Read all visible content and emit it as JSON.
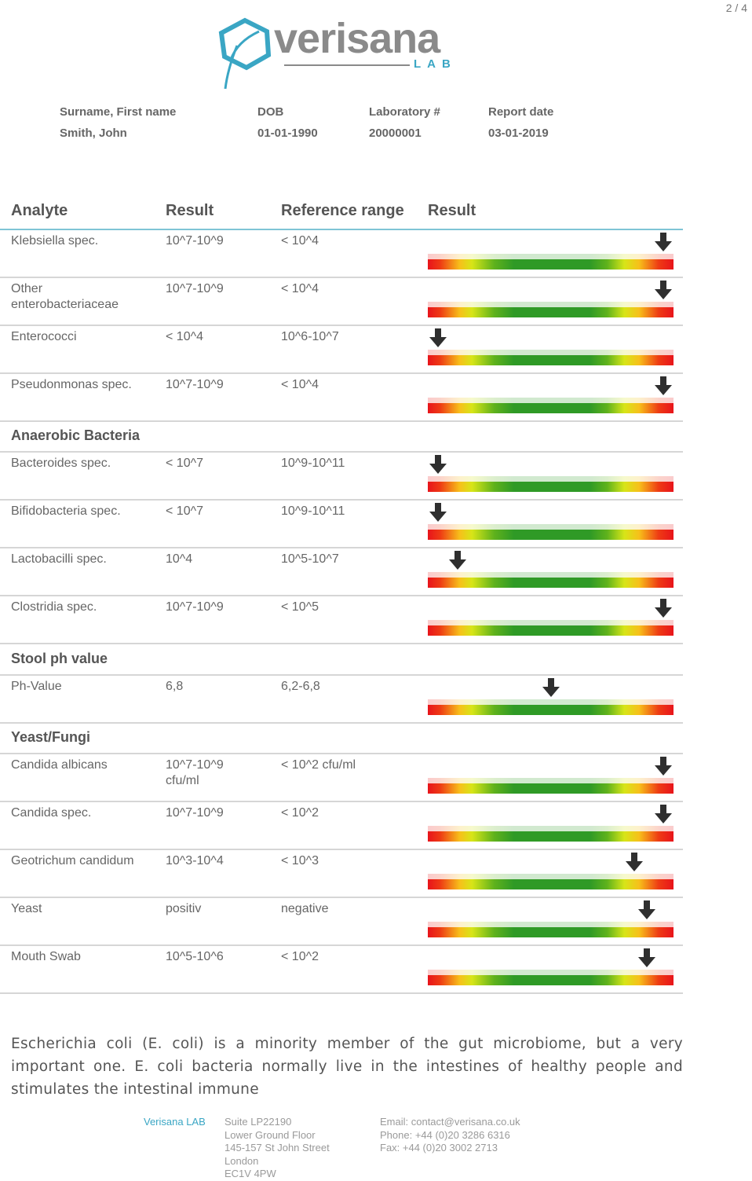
{
  "page_number": "2 / 4",
  "logo": {
    "word": "verisana",
    "sub": "LAB"
  },
  "patient": {
    "name_label": "Surname, First name",
    "name": "Smith, John",
    "dob_label": "DOB",
    "dob": "01-01-1990",
    "lab_label": "Laboratory #",
    "lab": "20000001",
    "report_label": "Report date",
    "report": "03-01-2019"
  },
  "table": {
    "headers": [
      "Analyte",
      "Result",
      "Reference range",
      "Result"
    ],
    "rows": [
      {
        "analyte": "Klebsiella spec.",
        "result": "10^7-10^9",
        "range": "< 10^4",
        "marker": 0.96
      },
      {
        "analyte": "Other enterobacteriaceae",
        "result": "10^7-10^9",
        "range": "< 10^4",
        "marker": 0.96
      },
      {
        "analyte": "Enterococci",
        "result": "< 10^4",
        "range": "10^6-10^7",
        "marker": 0.04
      },
      {
        "analyte": "Pseudonmonas spec.",
        "result": "10^7-10^9",
        "range": "< 10^4",
        "marker": 0.96
      },
      {
        "analyte": "Bacteroides spec.",
        "result": "< 10^7",
        "range": "10^9-10^11",
        "marker": 0.04
      },
      {
        "analyte": "Bifidobacteria spec.",
        "result": "< 10^7",
        "range": "10^9-10^11",
        "marker": 0.04
      },
      {
        "analyte": "Lactobacilli spec.",
        "result": "10^4",
        "range": "10^5-10^7",
        "marker": 0.12
      },
      {
        "analyte": "Clostridia spec.",
        "result": "10^7-10^9",
        "range": "< 10^5",
        "marker": 0.96
      },
      {
        "analyte": "Ph-Value",
        "result": "6,8",
        "range": "6,2-6,8",
        "marker": 0.5
      },
      {
        "analyte": "Candida albicans",
        "result": "10^7-10^9 cfu/ml",
        "range": "< 10^2 cfu/ml",
        "marker": 0.96
      },
      {
        "analyte": "Candida spec.",
        "result": "10^7-10^9",
        "range": "< 10^2",
        "marker": 0.96
      },
      {
        "analyte": "Geotrichum candidum",
        "result": "10^3-10^4",
        "range": "< 10^3",
        "marker": 0.84
      },
      {
        "analyte": "Yeast",
        "result": "positiv",
        "range": "negative",
        "marker": 0.89
      },
      {
        "analyte": "Mouth Swab",
        "result": "10^5-10^6",
        "range": "< 10^2",
        "marker": 0.89
      }
    ],
    "sections": [
      "Anaerobic Bacteria",
      "Stool ph value",
      "Yeast/Fungi"
    ]
  },
  "paragraph": "Escherichia coli (E. coli) is a minority member of the gut microbiome, but a very important one. E. coli bacteria normally live in the intestines of healthy people and stimulates the intestinal immune",
  "footer": {
    "brand": "Verisana LAB",
    "address": [
      "Suite LP22190",
      "Lower Ground Floor",
      "145-157 St John Street",
      "London",
      "EC1V 4PW"
    ],
    "email": "Email: contact@verisana.co.uk",
    "phone": "Phone: +44 (0)20 3286 6316",
    "fax": "Fax: +44 (0)20 3002 2713"
  }
}
